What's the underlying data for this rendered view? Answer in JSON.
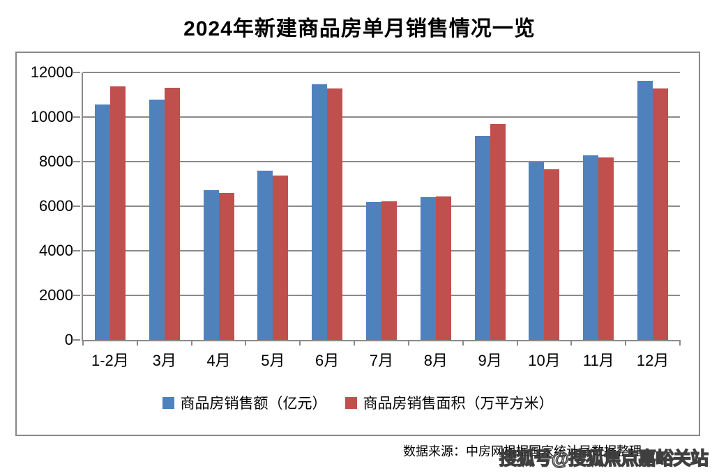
{
  "title": "2024年新建商品房单月销售情况一览",
  "colors": {
    "series_amount": "#4F81BD",
    "series_area": "#C0504D",
    "grid": "#8A8A8A",
    "frame_border": "#878787",
    "text": "#000000"
  },
  "chart_data": {
    "type": "bar",
    "title": "2024年新建商品房单月销售情况一览",
    "categories": [
      "1-2月",
      "3月",
      "4月",
      "5月",
      "6月",
      "7月",
      "8月",
      "9月",
      "10月",
      "11月",
      "12月"
    ],
    "series": [
      {
        "name": "商品房销售额（亿元）",
        "color": "#4F81BD",
        "values": [
          10566,
          10789,
          6712,
          7598,
          11468,
          6197,
          6393,
          9157,
          7975,
          8270,
          11625
        ]
      },
      {
        "name": "商品房销售面积（万平方米）",
        "color": "#C0504D",
        "values": [
          11369,
          11299,
          6584,
          7390,
          11274,
          6233,
          6453,
          9682,
          7646,
          8188,
          11267
        ]
      }
    ],
    "xlabel": "",
    "ylabel": "",
    "ylim": [
      0,
      12000
    ],
    "yticks": [
      0,
      2000,
      4000,
      6000,
      8000,
      10000,
      12000
    ],
    "grid": true,
    "legend_position": "bottom"
  },
  "footer": {
    "source_text": "数据来源：中房网根据国家统计局数据整理"
  },
  "watermark": {
    "text": "搜狐号@搜狐焦点嘉峪关站"
  }
}
